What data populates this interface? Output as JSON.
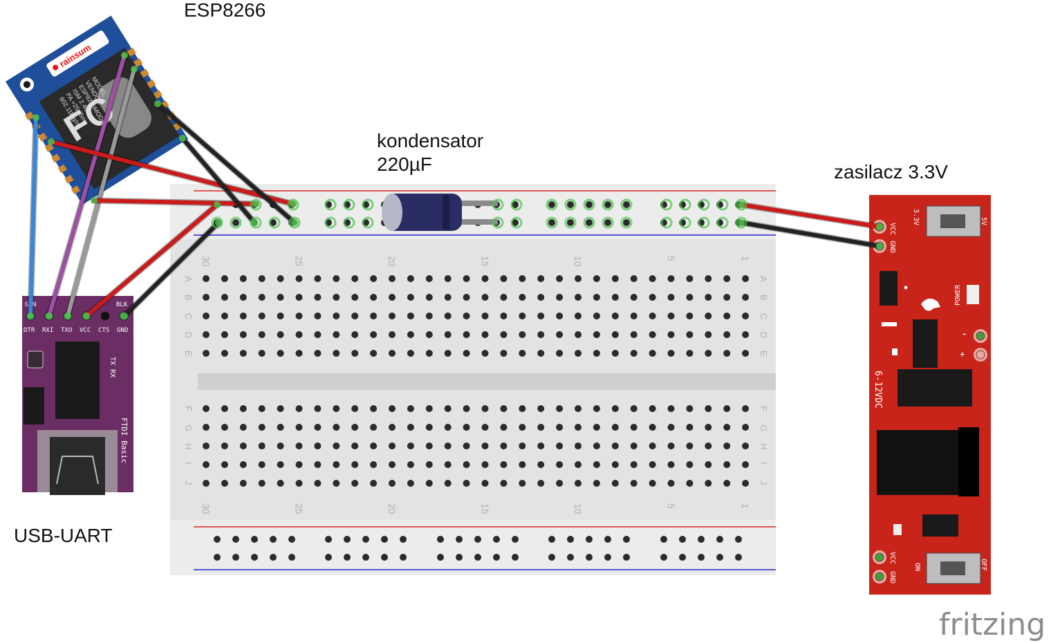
{
  "labels": {
    "esp": "ESP8266",
    "capacitor_line1": "kondensator",
    "capacitor_line2": "220µF",
    "psu": "zasilacz 3.3V",
    "usb": "USB-UART",
    "watermark": "fritzing"
  },
  "esp_module": {
    "brand": "rainsum",
    "text_lines": [
      "MODEL",
      "VENDOR",
      "ESP8266MOD",
      "ISM 2.4GHz",
      "PA +25dBm",
      "802.11b/g/n"
    ],
    "logo": "FC"
  },
  "ftdi": {
    "top_left": "GRN",
    "top_right": "BLK",
    "pins": [
      "DTR",
      "RXI",
      "TXO",
      "VCC",
      "CTS",
      "GND"
    ],
    "leds": "TX RX",
    "name": "FTDI Basic"
  },
  "psu_board": {
    "pin_top_1": "VCC",
    "pin_top_2": "GND",
    "switch_top_left": "3.3V",
    "switch_top_right": "5V",
    "power_led": "POWER",
    "minus": "-",
    "plus": "+",
    "input": "6-12VDC",
    "pin_bottom_1": "VCC",
    "pin_bottom_2": "GND",
    "switch_bottom_left": "ON",
    "switch_bottom_right": "OFF"
  },
  "breadboard": {
    "column_numbers": [
      "30",
      "25",
      "20",
      "15",
      "10",
      "5",
      "1"
    ],
    "rows_top": [
      "A",
      "B",
      "C",
      "D",
      "E"
    ],
    "rows_bottom": [
      "F",
      "G",
      "H",
      "I",
      "J"
    ]
  },
  "colors": {
    "wire_red": "#cc1a1a",
    "wire_black": "#222222",
    "wire_blue": "#3a86d8",
    "wire_purple": "#9c4fa3",
    "wire_gray": "#999999",
    "ftdi_board": "#6b2e64",
    "psu_board": "#c8241a",
    "esp_board": "#1f4f9a",
    "breadboard": "#e6e6e6"
  }
}
